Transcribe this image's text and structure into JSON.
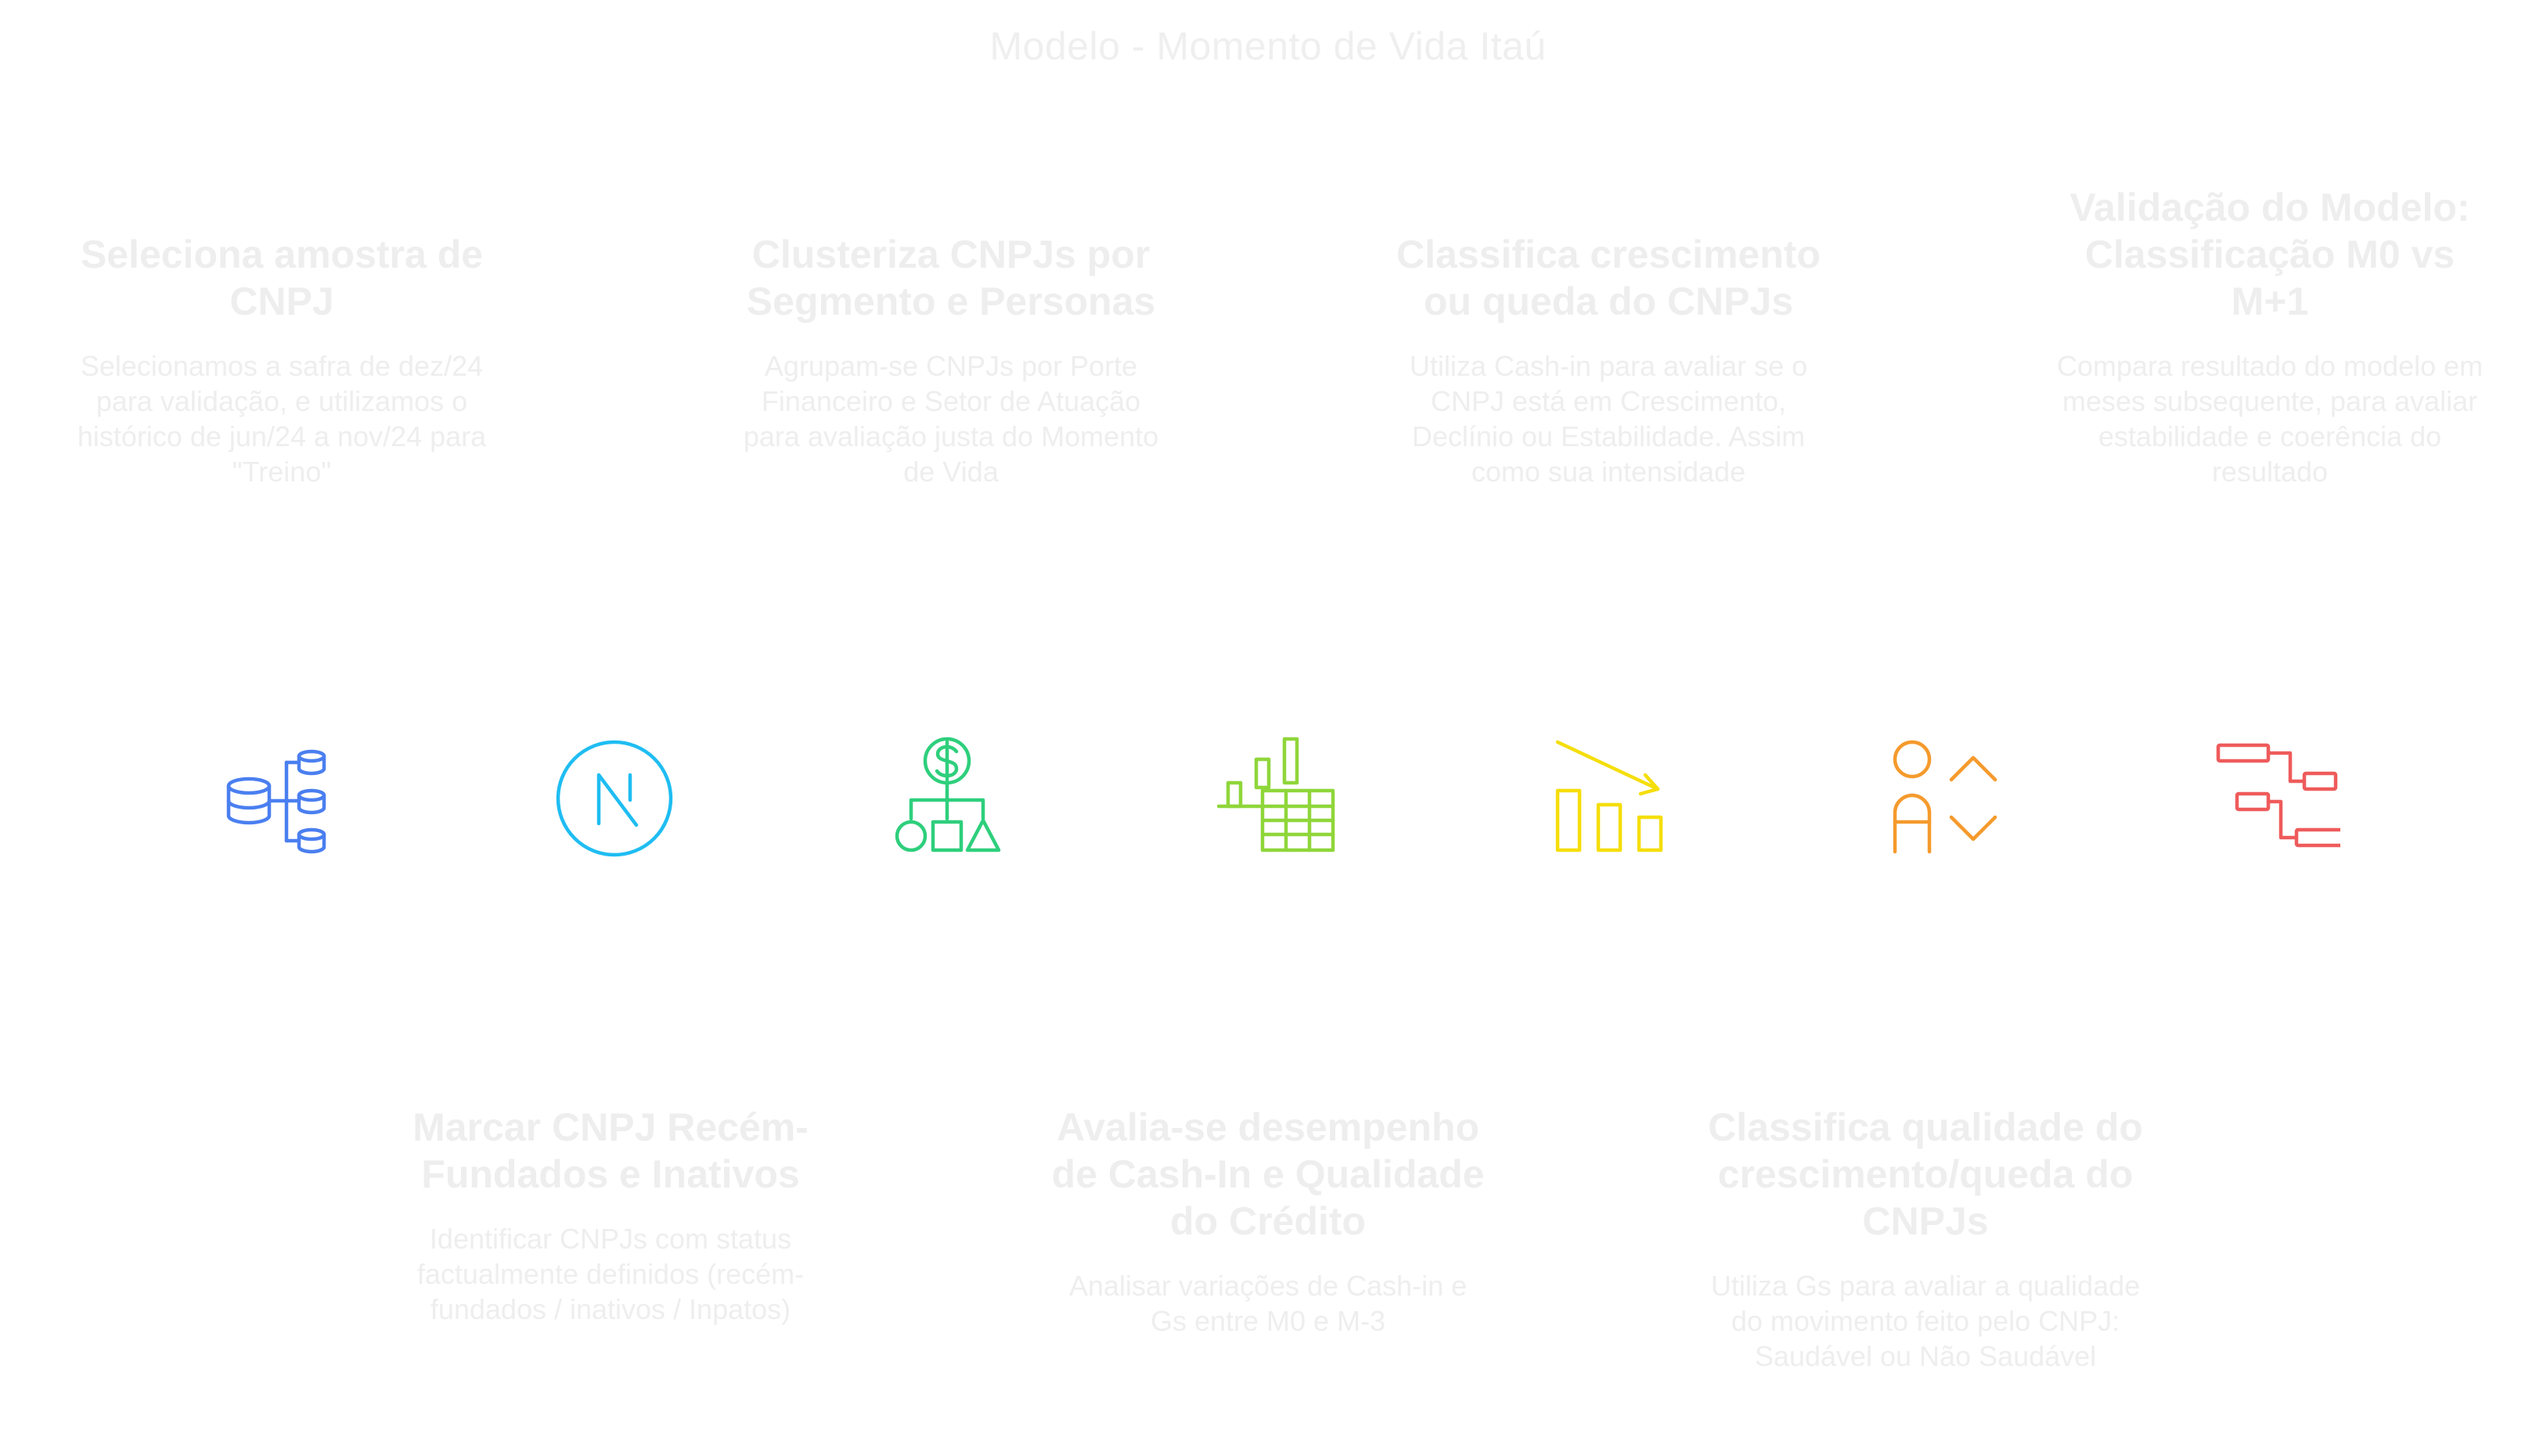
{
  "title": "Modelo - Momento de Vida Itaú",
  "top_steps": [
    {
      "heading": "Seleciona amostra de CNPJ",
      "description": "Selecionamos a safra de dez/24 para validação, e utilizamos o histórico de jun/24 a nov/24 para \"Treino\""
    },
    {
      "heading": "Clusteriza CNPJs por Segmento e Personas",
      "description": "Agrupam-se CNPJs por Porte Financeiro e Setor de Atuação para avaliação justa do Momento de Vida"
    },
    {
      "heading": "Classifica crescimento ou queda do CNPJs",
      "description": "Utiliza Cash-in para avaliar se o CNPJ está em Crescimento, Declínio ou Estabilidade. Assim como sua intensidade"
    },
    {
      "heading": "Validação do Modelo: Classificação M0 vs M+1",
      "description": "Compara resultado do modelo em meses subsequente, para avaliar estabilidade e coerência do resultado"
    }
  ],
  "bottom_steps": [
    {
      "heading": "Marcar CNPJ Recém-Fundados e Inativos",
      "description": "Identificar CNPJs com status factualmente definidos (recém-fundados / inativos / Inpatos)"
    },
    {
      "heading": "Avalia-se desempenho de Cash-In e Qualidade do Crédito",
      "description": "Analisar variações de Cash-in e Gs entre M0 e M-3"
    },
    {
      "heading": "Classifica qualidade do crescimento/queda do CNPJs",
      "description": "Utiliza Gs para avaliar a qualidade do movimento feito pelo CNPJ: Saudável ou Não Saudável"
    }
  ],
  "icons": [
    {
      "name": "database-hierarchy-icon",
      "color": "#4a7ff0"
    },
    {
      "name": "circle-n-slash-icon",
      "color": "#1fbdf2"
    },
    {
      "name": "dollar-shapes-hierarchy-icon",
      "color": "#2ecf7c"
    },
    {
      "name": "bar-chart-table-icon",
      "color": "#8fd63a"
    },
    {
      "name": "declining-bars-icon",
      "color": "#f5de0a"
    },
    {
      "name": "person-sort-icon",
      "color": "#f59a2c"
    },
    {
      "name": "tree-structure-icon",
      "color": "#ef5b5b"
    }
  ]
}
